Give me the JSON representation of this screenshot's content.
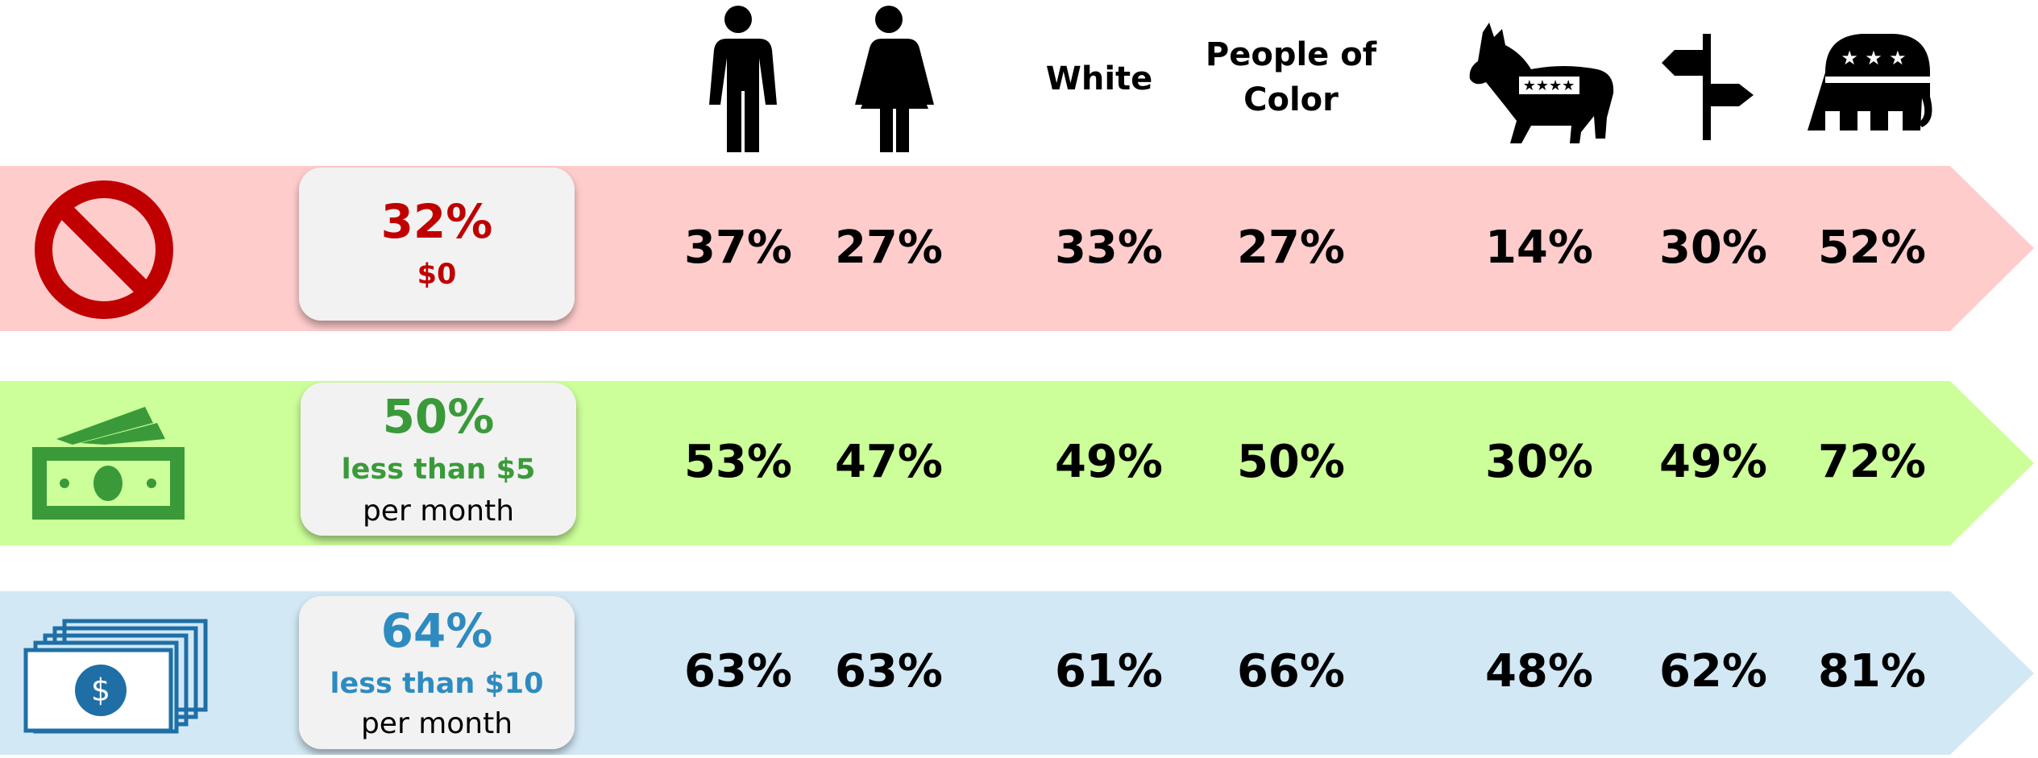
{
  "headers": [
    "White",
    "People of Color"
  ],
  "rows": [
    {
      "total": "32%",
      "label": "$0",
      "values": [
        "37%",
        "27%",
        "33%",
        "27%",
        "14%",
        "30%",
        "52%"
      ]
    },
    {
      "total": "50%",
      "label": "less than $5",
      "note": "per month",
      "values": [
        "53%",
        "47%",
        "49%",
        "50%",
        "30%",
        "49%",
        "72%"
      ]
    },
    {
      "total": "64%",
      "label": "less than $10",
      "note": "per month",
      "values": [
        "63%",
        "63%",
        "61%",
        "66%",
        "48%",
        "62%",
        "81%"
      ]
    }
  ]
}
